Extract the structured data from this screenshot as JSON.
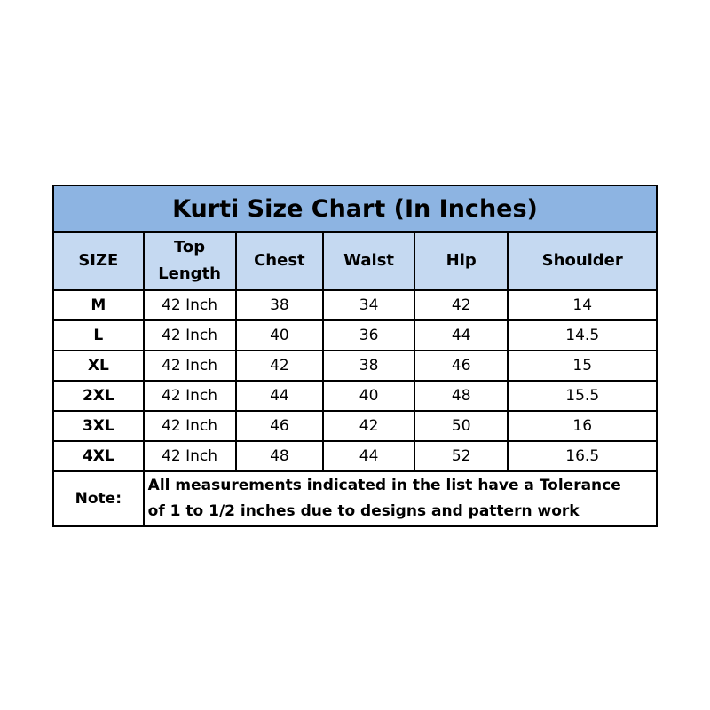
{
  "title": "Kurti Size Chart (In Inches)",
  "headers": [
    "SIZE",
    "Top Length",
    "Chest",
    "Waist",
    "Hip",
    "Shoulder"
  ],
  "rows": [
    [
      "M",
      "42 Inch",
      "38",
      "34",
      "42",
      "14"
    ],
    [
      "L",
      "42 Inch",
      "40",
      "36",
      "44",
      "14.5"
    ],
    [
      "XL",
      "42 Inch",
      "42",
      "38",
      "46",
      "15"
    ],
    [
      "2XL",
      "42 Inch",
      "44",
      "40",
      "48",
      "15.5"
    ],
    [
      "3XL",
      "42 Inch",
      "46",
      "42",
      "50",
      "16"
    ],
    [
      "4XL",
      "42 Inch",
      "48",
      "44",
      "52",
      "16.5"
    ]
  ],
  "note": {
    "label": "Note:",
    "line1": "All measurements indicated in the list have a Tolerance",
    "line2": "of 1 to 1/2 inches due to designs and pattern work"
  },
  "colors": {
    "title_bg": "#8db4e2",
    "header_bg": "#c5d9f1"
  }
}
